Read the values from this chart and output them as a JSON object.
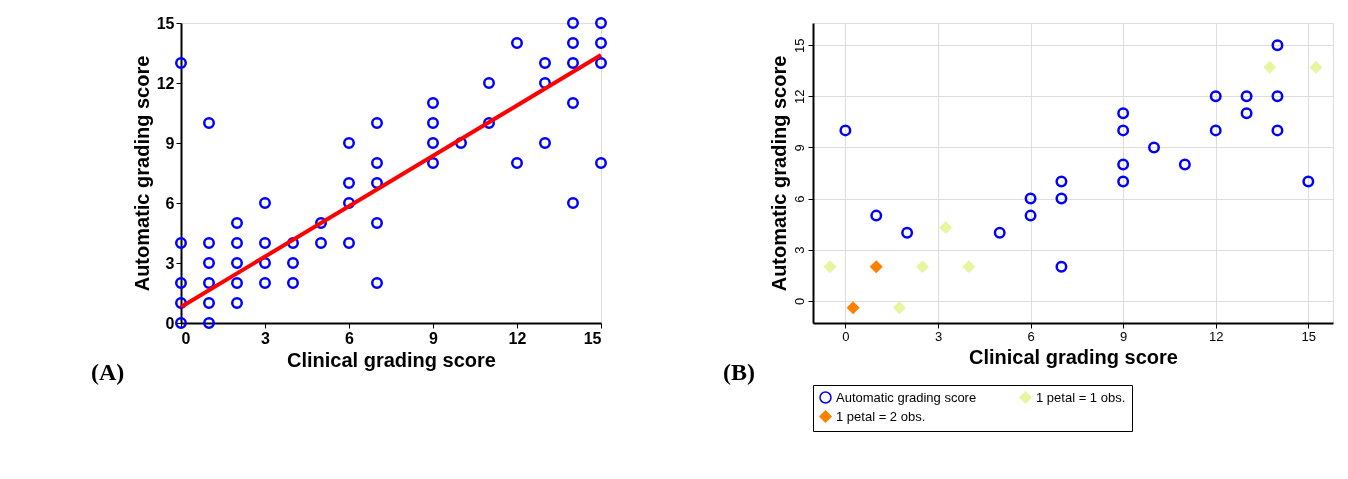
{
  "chart_data": [
    {
      "type": "scatter",
      "xlabel": "Clinical grading score",
      "ylabel": "Automatic grading score",
      "xlim": [
        0,
        15
      ],
      "ylim": [
        0,
        15
      ],
      "xticks": [
        0,
        3,
        6,
        9,
        12,
        15
      ],
      "yticks": [
        0,
        3,
        6,
        9,
        12,
        15
      ],
      "grid": false,
      "legend": false,
      "annotations": [
        "(A)"
      ],
      "series": [
        {
          "type": "scatter",
          "marker": "circle",
          "color": "#0000ff",
          "x": [
            0,
            0,
            0,
            0,
            0,
            1,
            1,
            1,
            1,
            1,
            1,
            2,
            2,
            2,
            2,
            2,
            3,
            3,
            3,
            3,
            4,
            4,
            4,
            5,
            5,
            6,
            6,
            6,
            6,
            7,
            7,
            7,
            7,
            7,
            9,
            9,
            9,
            9,
            10,
            11,
            11,
            12,
            12,
            13,
            13,
            13,
            14,
            14,
            14,
            14,
            14,
            15,
            15,
            15,
            15
          ],
          "values": [
            13,
            4,
            2,
            1,
            0,
            10,
            4,
            3,
            2,
            1,
            0,
            5,
            4,
            3,
            2,
            1,
            6,
            4,
            3,
            2,
            4,
            3,
            2,
            5,
            4,
            9,
            7,
            6,
            4,
            10,
            8,
            7,
            5,
            2,
            11,
            10,
            9,
            8,
            9,
            12,
            10,
            14,
            8,
            13,
            12,
            9,
            15,
            14,
            13,
            11,
            6,
            15,
            14,
            13,
            8
          ]
        },
        {
          "type": "line",
          "color": "#ff0000",
          "x": [
            0,
            15
          ],
          "values": [
            0.8,
            13.4
          ]
        }
      ]
    },
    {
      "type": "scatter",
      "xlabel": "Clinical grading score",
      "ylabel": "Automatic grading score",
      "xlim": [
        -1.05,
        15.8
      ],
      "ylim": [
        -1.3,
        16.3
      ],
      "xticks": [
        0,
        3,
        6,
        9,
        12,
        15
      ],
      "yticks": [
        0,
        3,
        6,
        9,
        12,
        15
      ],
      "grid": true,
      "legend": "bottom",
      "annotations": [
        "(B)"
      ],
      "series": [
        {
          "type": "scatter",
          "marker": "circle",
          "name": "Automatic grading score",
          "color": "#0000ff",
          "x": [
            0,
            1,
            2,
            5,
            6,
            6,
            7,
            7,
            7,
            9,
            9,
            9,
            9,
            10,
            11,
            12,
            12,
            13,
            13,
            14,
            14,
            14,
            15
          ],
          "values": [
            10,
            5,
            4,
            4,
            6,
            5,
            7,
            6,
            2,
            11,
            10,
            8,
            7,
            9,
            8,
            12,
            10,
            12,
            11,
            15,
            12,
            10,
            7
          ]
        },
        {
          "type": "scatter",
          "marker": "diamond",
          "name": "1 petal = 1 obs.",
          "color": "#e6f5a0",
          "x": [
            -0.5,
            2.5,
            3.25,
            4.0,
            1.75,
            13.75,
            15.25
          ],
          "values": [
            2,
            2,
            4.3,
            2,
            -0.4,
            13.7,
            13.7
          ]
        },
        {
          "type": "scatter",
          "marker": "diamond",
          "name": "1 petal = 2 obs.",
          "color": "#ff8000",
          "x": [
            1.0,
            0.25
          ],
          "values": [
            2,
            -0.4
          ]
        }
      ]
    }
  ]
}
